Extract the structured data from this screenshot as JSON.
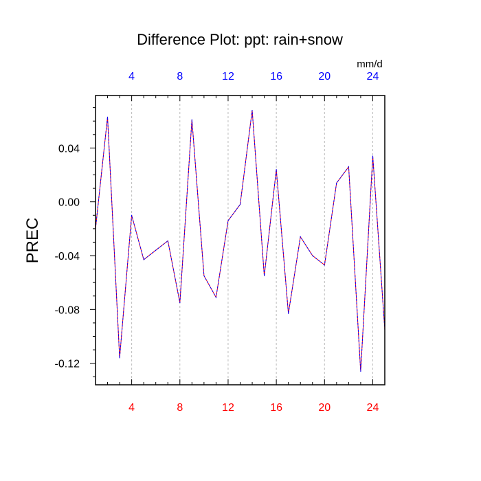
{
  "chart_data": {
    "type": "line",
    "title": "Difference Plot: ppt: rain+snow",
    "units": "mm/d",
    "ylabel": "PREC",
    "xlabel": "",
    "xlim": [
      1,
      25
    ],
    "ylim": [
      -0.136,
      0.079
    ],
    "x_ticks": [
      "4",
      "8",
      "12",
      "16",
      "20",
      "24"
    ],
    "x_tick_values": [
      4,
      8,
      12,
      16,
      20,
      24
    ],
    "y_ticks": [
      "0.04",
      "0.00",
      "-0.04",
      "-0.08",
      "-0.12"
    ],
    "y_tick_values": [
      0.04,
      0.0,
      -0.04,
      -0.08,
      -0.12
    ],
    "grid": "vertical dashed at major x ticks",
    "colors": {
      "top_tick_labels": "#0000ff",
      "bottom_tick_labels": "#ff0000",
      "line_primary": "#ff0000",
      "line_overlay": "#0000ff",
      "grid": "#bbbbbb",
      "frame": "#000000"
    },
    "series": [
      {
        "x": [
          1,
          2,
          3,
          4,
          5,
          6,
          7,
          8,
          9,
          10,
          11,
          12,
          13,
          14,
          15,
          16,
          17,
          18,
          19,
          20,
          21,
          22,
          23,
          24,
          25
        ],
        "values": [
          -0.02,
          0.063,
          -0.116,
          -0.01,
          -0.043,
          -0.036,
          -0.029,
          -0.075,
          0.061,
          -0.055,
          -0.071,
          -0.014,
          -0.002,
          0.068,
          -0.055,
          0.024,
          -0.083,
          -0.026,
          -0.04,
          -0.047,
          0.014,
          0.026,
          -0.126,
          0.034,
          -0.095
        ]
      }
    ]
  }
}
